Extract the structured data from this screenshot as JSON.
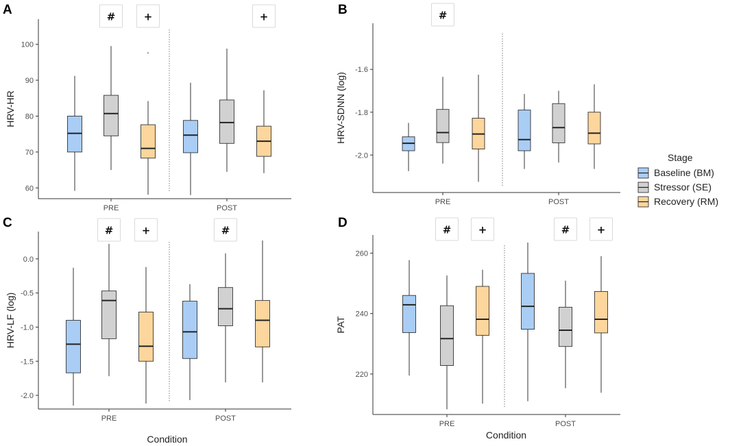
{
  "colors": {
    "baseline": "#a9cdf5",
    "stressor": "#d1d1d1",
    "recovery": "#fcd69c",
    "outline": "#333333",
    "annotation_border": "#d9d9d9"
  },
  "legend": {
    "title": "Stage",
    "items": [
      {
        "label": "Baseline (BM)",
        "color_key": "baseline"
      },
      {
        "label": "Stressor (SE)",
        "color_key": "stressor"
      },
      {
        "label": "Recovery (RM)",
        "color_key": "recovery"
      }
    ]
  },
  "chart_data": [
    {
      "panel": "A",
      "type": "boxplot",
      "title": "",
      "xlabel": "",
      "ylabel": "HRV-HR",
      "categories": [
        "PRE",
        "POST"
      ],
      "ylim": [
        57,
        107
      ],
      "yticks": [
        60,
        70,
        80,
        90,
        100
      ],
      "ytick_labels": [
        "60",
        "70",
        "80",
        "90",
        "100"
      ],
      "series": [
        {
          "name": "Baseline (BM)",
          "color_key": "baseline",
          "boxes": [
            {
              "whisker_low": 59.2,
              "q1": 70,
              "median": 75.2,
              "q3": 80,
              "whisker_high": 91.2
            },
            {
              "whisker_low": 58,
              "q1": 69.8,
              "median": 74.7,
              "q3": 78.8,
              "whisker_high": 89.3
            }
          ]
        },
        {
          "name": "Stressor (SE)",
          "color_key": "stressor",
          "boxes": [
            {
              "whisker_low": 65,
              "q1": 74.5,
              "median": 80.7,
              "q3": 85.8,
              "whisker_high": 99.5
            },
            {
              "whisker_low": 64.5,
              "q1": 72.4,
              "median": 78.2,
              "q3": 84.5,
              "whisker_high": 98.8
            }
          ]
        },
        {
          "name": "Recovery (RM)",
          "color_key": "recovery",
          "boxes": [
            {
              "whisker_low": 58.1,
              "q1": 68.3,
              "median": 71,
              "q3": 77.6,
              "whisker_high": 84.2,
              "outliers": [
                97.6
              ]
            },
            {
              "whisker_low": 64.1,
              "q1": 68.8,
              "median": 73,
              "q3": 77.2,
              "whisker_high": 87.2
            }
          ]
        }
      ],
      "annotations": [
        {
          "text": "#",
          "category": "PRE",
          "series_index": 1
        },
        {
          "text": "+",
          "category": "PRE",
          "series_index": 2
        },
        {
          "text": "+",
          "category": "POST",
          "series_index": 2
        }
      ]
    },
    {
      "panel": "B",
      "type": "boxplot",
      "title": "",
      "xlabel": "",
      "ylabel": "HRV-SDNN (log)",
      "categories": [
        "PRE",
        "POST"
      ],
      "ylim": [
        -2.175,
        -1.385
      ],
      "yticks": [
        -2.0,
        -1.8,
        -1.6
      ],
      "ytick_labels": [
        "-2.0",
        "-1.8",
        "-1.6"
      ],
      "series": [
        {
          "name": "Baseline (BM)",
          "color_key": "baseline",
          "boxes": [
            {
              "whisker_low": -2.075,
              "q1": -1.98,
              "median": -1.945,
              "q3": -1.915,
              "whisker_high": -1.85
            },
            {
              "whisker_low": -2.065,
              "q1": -1.98,
              "median": -1.928,
              "q3": -1.79,
              "whisker_high": -1.715
            }
          ]
        },
        {
          "name": "Stressor (SE)",
          "color_key": "stressor",
          "boxes": [
            {
              "whisker_low": -2.04,
              "q1": -1.942,
              "median": -1.895,
              "q3": -1.787,
              "whisker_high": -1.635
            },
            {
              "whisker_low": -2.035,
              "q1": -1.943,
              "median": -1.872,
              "q3": -1.76,
              "whisker_high": -1.7
            }
          ]
        },
        {
          "name": "Recovery (RM)",
          "color_key": "recovery",
          "boxes": [
            {
              "whisker_low": -2.125,
              "q1": -1.972,
              "median": -1.902,
              "q3": -1.828,
              "whisker_high": -1.625
            },
            {
              "whisker_low": -2.065,
              "q1": -1.948,
              "median": -1.898,
              "q3": -1.8,
              "whisker_high": -1.67
            }
          ]
        }
      ],
      "annotations": [
        {
          "text": "#",
          "category": "PRE",
          "series_index": 1
        }
      ]
    },
    {
      "panel": "C",
      "type": "boxplot",
      "title": "",
      "xlabel": "Condition",
      "ylabel": "HRV-LF (log)",
      "categories": [
        "PRE",
        "POST"
      ],
      "ylim": [
        -2.2,
        0.4
      ],
      "yticks": [
        -2.0,
        -1.5,
        -1.0,
        -0.5,
        0.0
      ],
      "ytick_labels": [
        "-2.0",
        "-1.5",
        "-1.0",
        "-0.5",
        "0.0"
      ],
      "series": [
        {
          "name": "Baseline (BM)",
          "color_key": "baseline",
          "boxes": [
            {
              "whisker_low": -2.15,
              "q1": -1.67,
              "median": -1.25,
              "q3": -0.9,
              "whisker_high": -0.13
            },
            {
              "whisker_low": -2.07,
              "q1": -1.46,
              "median": -1.07,
              "q3": -0.62,
              "whisker_high": -0.37
            }
          ]
        },
        {
          "name": "Stressor (SE)",
          "color_key": "stressor",
          "boxes": [
            {
              "whisker_low": -1.72,
              "q1": -1.17,
              "median": -0.61,
              "q3": -0.47,
              "whisker_high": 0.22
            },
            {
              "whisker_low": -1.81,
              "q1": -0.98,
              "median": -0.73,
              "q3": -0.42,
              "whisker_high": 0.08
            }
          ]
        },
        {
          "name": "Recovery (RM)",
          "color_key": "recovery",
          "boxes": [
            {
              "whisker_low": -2.12,
              "q1": -1.5,
              "median": -1.28,
              "q3": -0.78,
              "whisker_high": -0.12
            },
            {
              "whisker_low": -1.81,
              "q1": -1.29,
              "median": -0.9,
              "q3": -0.61,
              "whisker_high": 0.27
            }
          ]
        }
      ],
      "annotations": [
        {
          "text": "#",
          "category": "PRE",
          "series_index": 1
        },
        {
          "text": "+",
          "category": "PRE",
          "series_index": 2
        },
        {
          "text": "#",
          "category": "POST",
          "series_index": 1
        }
      ]
    },
    {
      "panel": "D",
      "type": "boxplot",
      "title": "",
      "xlabel": "Condition",
      "ylabel": "PAT",
      "categories": [
        "PRE",
        "POST"
      ],
      "ylim": [
        206.6,
        266
      ],
      "yticks": [
        220,
        240,
        260
      ],
      "ytick_labels": [
        "220",
        "240",
        "260"
      ],
      "series": [
        {
          "name": "Baseline (BM)",
          "color_key": "baseline",
          "boxes": [
            {
              "whisker_low": 219.5,
              "q1": 233.7,
              "median": 242.9,
              "q3": 246,
              "whisker_high": 257.7
            },
            {
              "whisker_low": 211,
              "q1": 234.8,
              "median": 242.4,
              "q3": 253.3,
              "whisker_high": 263.5
            }
          ]
        },
        {
          "name": "Stressor (SE)",
          "color_key": "stressor",
          "boxes": [
            {
              "whisker_low": 208.3,
              "q1": 222.8,
              "median": 231.7,
              "q3": 242.6,
              "whisker_high": 252.6
            },
            {
              "whisker_low": 215.3,
              "q1": 229.1,
              "median": 234.5,
              "q3": 242.1,
              "whisker_high": 250.9
            }
          ]
        },
        {
          "name": "Recovery (RM)",
          "color_key": "recovery",
          "boxes": [
            {
              "whisker_low": 210.2,
              "q1": 232.8,
              "median": 238.1,
              "q3": 249,
              "whisker_high": 254.5
            },
            {
              "whisker_low": 213.8,
              "q1": 233.6,
              "median": 238.1,
              "q3": 247.3,
              "whisker_high": 259
            }
          ]
        }
      ],
      "annotations": [
        {
          "text": "#",
          "category": "PRE",
          "series_index": 1
        },
        {
          "text": "+",
          "category": "PRE",
          "series_index": 2
        },
        {
          "text": "#",
          "category": "POST",
          "series_index": 1
        },
        {
          "text": "+",
          "category": "POST",
          "series_index": 2
        }
      ]
    }
  ]
}
